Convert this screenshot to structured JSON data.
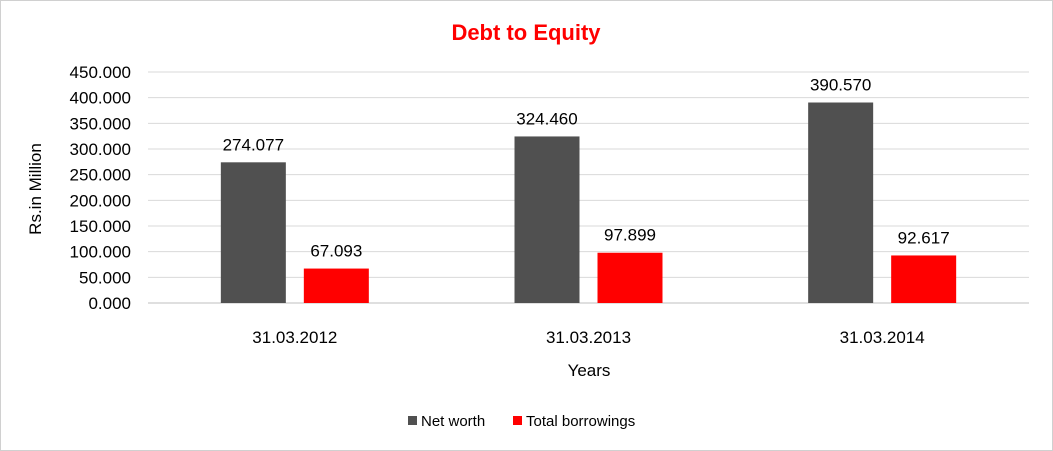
{
  "chart_data": {
    "type": "bar",
    "title": "Debt to Equity",
    "xlabel": "Years",
    "ylabel": "Rs.in Million",
    "categories": [
      "31.03.2012",
      "31.03.2013",
      "31.03.2014"
    ],
    "series": [
      {
        "name": "Net worth",
        "color": "#505050",
        "values": [
          274.077,
          324.46,
          390.57
        ],
        "labels": [
          "274.077",
          "324.460",
          "390.570"
        ]
      },
      {
        "name": "Total borrowings",
        "color": "#ff0000",
        "values": [
          67.093,
          97.899,
          92.617
        ],
        "labels": [
          "67.093",
          "97.899",
          "92.617"
        ]
      }
    ],
    "ylim": [
      0,
      450
    ],
    "yticks": [
      "0.000",
      "50.000",
      "100.000",
      "150.000",
      "200.000",
      "250.000",
      "300.000",
      "350.000",
      "400.000",
      "450.000"
    ],
    "grid": true,
    "legend_position": "bottom"
  }
}
